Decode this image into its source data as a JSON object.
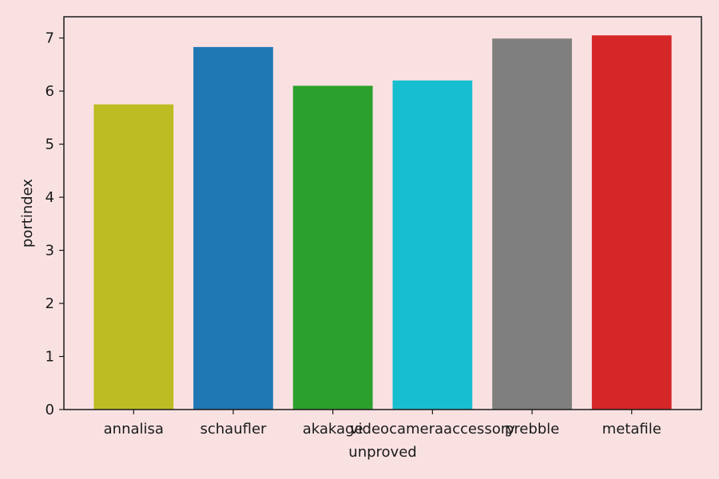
{
  "colors": {
    "background": "#f9e1e2",
    "axis": "#1a1a1a"
  },
  "chart_data": {
    "type": "bar",
    "title": "",
    "xlabel": "unproved",
    "ylabel": "portindex",
    "categories": [
      "annalisa",
      "schaufler",
      "akakage",
      "videocameraaccessory",
      "prebble",
      "metafile"
    ],
    "values": [
      5.75,
      6.83,
      6.1,
      6.2,
      6.99,
      7.05
    ],
    "bar_colors": [
      "#bcbd22",
      "#1f77b4",
      "#2ca02c",
      "#17becf",
      "#7f7f7f",
      "#d62728"
    ],
    "yticks": [
      0,
      1,
      2,
      3,
      4,
      5,
      6,
      7
    ],
    "ylim": [
      0,
      7.4
    ],
    "grid": false,
    "legend": "none"
  }
}
